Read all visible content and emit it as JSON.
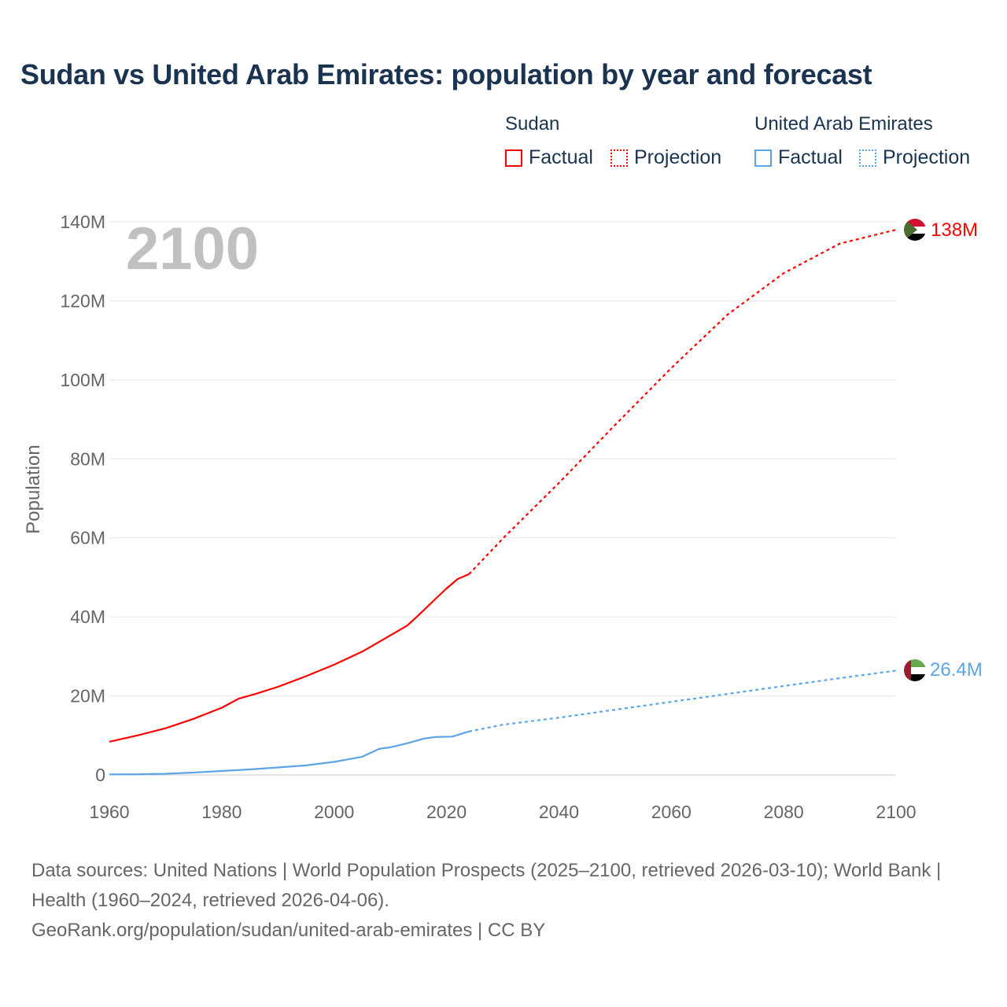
{
  "chart_data": {
    "type": "line",
    "title": "Sudan vs United Arab Emirates: population by year and forecast",
    "ylabel": "Population",
    "xlabel": "",
    "xlim": [
      1960,
      2100
    ],
    "ylim": [
      0,
      140
    ],
    "y_unit": "M",
    "xticks": [
      "1960",
      "1980",
      "2000",
      "2020",
      "2040",
      "2060",
      "2080",
      "2100"
    ],
    "yticks": [
      "0",
      "20M",
      "40M",
      "60M",
      "80M",
      "100M",
      "120M",
      "140M"
    ],
    "year_overlay": "2100",
    "grid": true,
    "legend_placement": "top-right",
    "series": [
      {
        "name": "Sudan",
        "color": "#ff0000",
        "end_label": "138M",
        "factual": {
          "label": "Factual",
          "x": [
            1960,
            1965,
            1970,
            1975,
            1980,
            1983,
            1986,
            1990,
            1995,
            2000,
            2005,
            2010,
            2013,
            2015,
            2018,
            2020,
            2022,
            2024
          ],
          "y": [
            8.4,
            10.0,
            11.8,
            14.2,
            17.0,
            19.3,
            20.5,
            22.3,
            25.0,
            27.9,
            31.2,
            35.3,
            37.8,
            40.4,
            44.5,
            47.2,
            49.6,
            50.8
          ]
        },
        "projection": {
          "label": "Projection",
          "x": [
            2024,
            2030,
            2040,
            2050,
            2060,
            2070,
            2080,
            2090,
            2100
          ],
          "y": [
            50.8,
            59.8,
            73.9,
            88.6,
            103.0,
            116.5,
            127.0,
            134.5,
            138.0
          ]
        }
      },
      {
        "name": "United Arab Emirates",
        "color": "#5ba4e8",
        "end_label": "26.4M",
        "factual": {
          "label": "Factual",
          "x": [
            1960,
            1965,
            1970,
            1975,
            1980,
            1985,
            1990,
            1995,
            2000,
            2005,
            2008,
            2010,
            2013,
            2016,
            2018,
            2021,
            2024
          ],
          "y": [
            0.13,
            0.15,
            0.3,
            0.6,
            1.0,
            1.4,
            1.9,
            2.4,
            3.3,
            4.6,
            6.6,
            7.0,
            8.0,
            9.2,
            9.6,
            9.7,
            11.0
          ]
        },
        "projection": {
          "label": "Projection",
          "x": [
            2024,
            2030,
            2040,
            2050,
            2060,
            2070,
            2080,
            2090,
            2100
          ],
          "y": [
            11.0,
            12.7,
            14.5,
            16.5,
            18.5,
            20.5,
            22.5,
            24.5,
            26.4
          ]
        }
      }
    ]
  },
  "source_text": "Data sources: United Nations | World Population Prospects (2025–2100, retrieved 2026-03-10); World Bank | Health (1960–2024, retrieved 2026-04-06).",
  "source_link": "GeoRank.org/population/sudan/united-arab-emirates | CC BY"
}
